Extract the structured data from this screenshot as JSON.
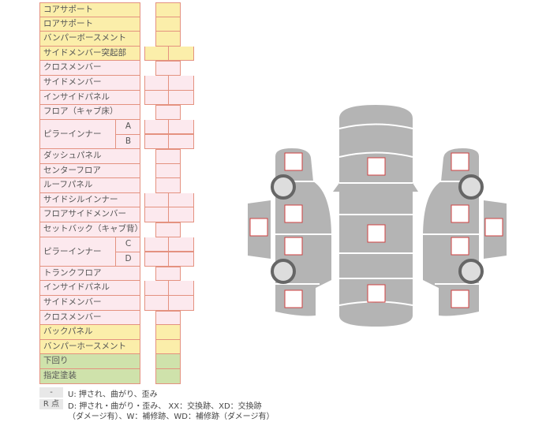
{
  "rows": [
    {
      "label": "コアサポート",
      "color": "yellow",
      "cells": 1
    },
    {
      "label": "ロアサポート",
      "color": "yellow",
      "cells": 1
    },
    {
      "label": "バンパーボースメント",
      "color": "yellow",
      "cells": 1
    },
    {
      "label": "サイドメンバー突起部",
      "color": "yellow",
      "cells": 2
    },
    {
      "label": "クロスメンバー",
      "color": "pink",
      "cells": 1
    },
    {
      "label": "サイドメンバー",
      "color": "pink",
      "cells": 2
    },
    {
      "label": "インサイドパネル",
      "color": "pink",
      "cells": 2
    },
    {
      "label": "フロア（キャブ床）",
      "color": "pink",
      "cells": 1
    },
    {
      "label": "ピラーインナー",
      "color": "pink",
      "cells": 2,
      "sub": [
        "A",
        "B"
      ]
    },
    {
      "label": "ダッシュパネル",
      "color": "pink",
      "cells": 1
    },
    {
      "label": "センターフロア",
      "color": "pink",
      "cells": 1
    },
    {
      "label": "ルーフパネル",
      "color": "pink",
      "cells": 1
    },
    {
      "label": "サイドシルインナー",
      "color": "pink",
      "cells": 2
    },
    {
      "label": "フロアサイドメンバー",
      "color": "pink",
      "cells": 2
    },
    {
      "label": "セットバック（キャブ背）",
      "color": "pink",
      "cells": 1
    },
    {
      "label": "ピラーインナー",
      "color": "pink",
      "cells": 2,
      "sub": [
        "C",
        "D"
      ]
    },
    {
      "label": "トランクフロア",
      "color": "pink",
      "cells": 1
    },
    {
      "label": "インサイドパネル",
      "color": "pink",
      "cells": 2
    },
    {
      "label": "サイドメンバー",
      "color": "pink",
      "cells": 2
    },
    {
      "label": "クロスメンバー",
      "color": "pink",
      "cells": 1
    },
    {
      "label": "バックパネル",
      "color": "yellow",
      "cells": 1
    },
    {
      "label": "バンパーホースメント",
      "color": "yellow",
      "cells": 1
    },
    {
      "label": "下回り",
      "color": "green",
      "cells": 1
    },
    {
      "label": "指定塗装",
      "color": "green",
      "cells": 1
    }
  ],
  "colors": {
    "yellow": "#fbeeaa",
    "pink": "#fce9ee",
    "green": "#cfe2ab",
    "border": "#e49280",
    "car": "#b4b4b4",
    "marker": "#d04040"
  },
  "legend": {
    "key1": "-",
    "text1": "U: 押され、曲がり、歪み",
    "key2": "R 点",
    "text2": "D: 押され・曲がり・歪み、 XX：交換跡、XD：交換跡",
    "text3": "（ダメージ有）、W：補修跡、WD：補修跡（ダメージ有）"
  }
}
